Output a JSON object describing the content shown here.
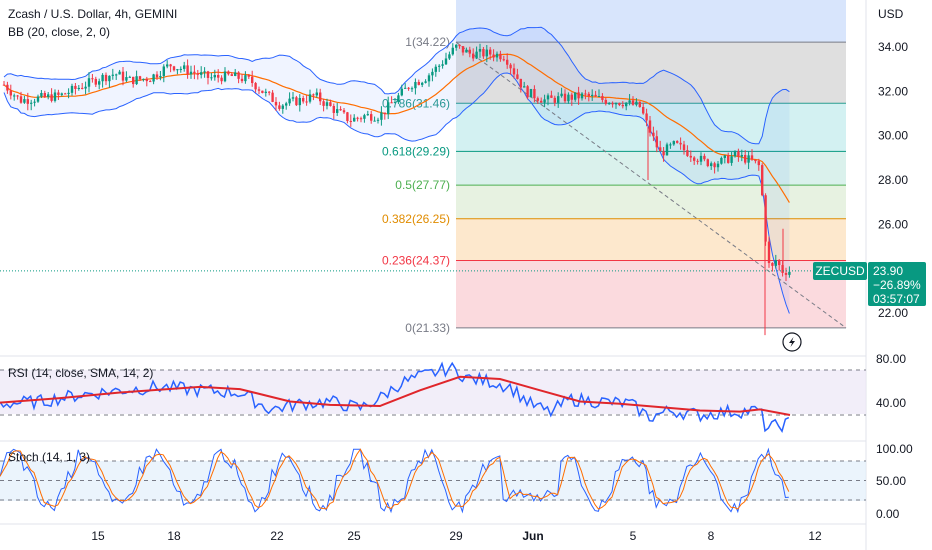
{
  "header": {
    "title": "Zcash / U.S. Dollar, 4h, GEMINI",
    "bb_label": "BB (20, close, 2, 0)"
  },
  "price_axis": {
    "currency": "USD",
    "ticks": [
      "34.00",
      "32.00",
      "30.00",
      "28.00",
      "26.00",
      "22.00"
    ],
    "tick_values": [
      34,
      32,
      30,
      28,
      26,
      22
    ]
  },
  "price_tag": {
    "symbol": "ZECUSD",
    "price": "23.90",
    "change": "−26.89%",
    "countdown": "03:57:07",
    "value": 23.9
  },
  "fib_levels": [
    {
      "label": "1(34.22)",
      "value": 34.22,
      "color": "#787b86",
      "fill": "#d1e0fb"
    },
    {
      "label": "0.786(31.46)",
      "value": 31.46,
      "color": "#2a9d8f",
      "fill": "#d9d9d9"
    },
    {
      "label": "0.618(29.29)",
      "value": 29.29,
      "color": "#089981",
      "fill": "#cbeff0"
    },
    {
      "label": "0.5(27.77)",
      "value": 27.77,
      "color": "#4caf50",
      "fill": "#d3efe9"
    },
    {
      "label": "0.382(26.25)",
      "value": 26.25,
      "color": "#e08c00",
      "fill": "#e3f0dc"
    },
    {
      "label": "0.236(24.37)",
      "value": 24.37,
      "color": "#f23645",
      "fill": "#fde4c4"
    },
    {
      "label": "0(21.33)",
      "value": 21.33,
      "color": "#787b86",
      "fill": "#fad4d8"
    }
  ],
  "x_axis": {
    "ticks": [
      "15",
      "18",
      "22",
      "25",
      "29",
      "Jun",
      "5",
      "8",
      "12"
    ]
  },
  "rsi": {
    "label": "RSI (14, close, SMA, 14, 2)",
    "ticks": [
      "80.00",
      "40.00"
    ],
    "tick_values": [
      80,
      40
    ],
    "bands": [
      70,
      30
    ]
  },
  "stoch": {
    "label": "Stoch (14, 1, 3)",
    "ticks": [
      "100.00",
      "50.00",
      "0.00"
    ],
    "tick_values": [
      100,
      50,
      0
    ],
    "bands": [
      80,
      50,
      20
    ]
  },
  "colors": {
    "up": "#089981",
    "down": "#f23645",
    "bb": "#2962ff",
    "basis": "#ff6d00",
    "rsi_line": "#2962ff",
    "rsi_ma": "#e0262b",
    "stoch_k": "#2962ff",
    "stoch_d": "#ff6d00",
    "tag": "#089981"
  },
  "icons": [
    "lightning-icon"
  ]
}
